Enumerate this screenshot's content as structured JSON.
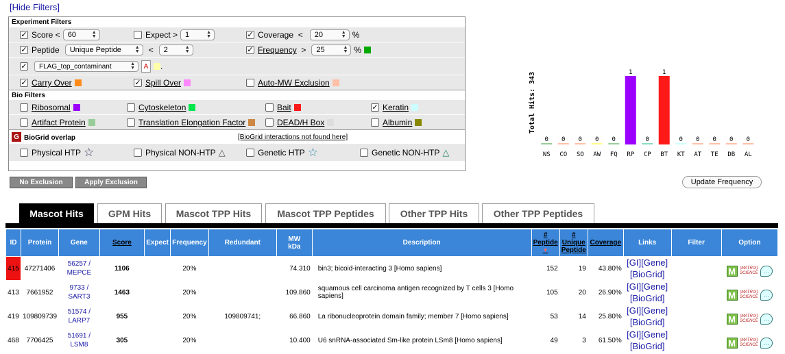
{
  "hide_filters": "[Hide Filters]",
  "experiment": {
    "title": "Experiment Filters",
    "score_label": "Score <",
    "score_value": "60",
    "expect_label": "Expect >",
    "expect_value": "1",
    "coverage_label": "Coverage",
    "coverage_op": "<",
    "coverage_value": "20",
    "coverage_unit": "%",
    "peptide_label": "Peptide",
    "peptide_type": "Unique Peptide",
    "peptide_op": "<",
    "peptide_value": "2",
    "frequency_label": "Frequency",
    "frequency_op": ">",
    "frequency_value": "25",
    "frequency_unit": "%",
    "contaminant_value": "FLAG_top_contaminant",
    "contaminant_dot": ".",
    "carry_over": "Carry Over",
    "spill_over": "Spill Over",
    "auto_mw": "Auto-MW Exclusion"
  },
  "bio": {
    "title": "Bio Filters",
    "ribosomal": "Ribosomal",
    "cytoskeleton": "Cytoskeleton",
    "bait": "Bait",
    "keratin": "Keratin",
    "artifact": "Artifact Protein",
    "translation": "Translation Elongation Factor",
    "dead": "DEAD/H Box",
    "albumin": "Albumin"
  },
  "biogrid": {
    "title": "BioGrid overlap",
    "not_found": "[BioGrid interactions not found here]",
    "physical_htp": "Physical HTP",
    "physical_non_htp": "Physical NON-HTP",
    "genetic_htp": "Genetic HTP",
    "genetic_non_htp": "Genetic NON-HTP"
  },
  "colors": {
    "ribosomal": "#9b00ff",
    "cytoskeleton": "#00e64d",
    "bait": "#ff1a1a",
    "keratin": "#ccffff",
    "artifact": "#99cc99",
    "translation": "#cc8844",
    "dead": "#dddddd",
    "albumin": "#888800",
    "carry_over": "#ff8c1a",
    "spill_over": "#ff88ff",
    "auto_mw": "#ffc0a8",
    "frequency": "#00aa00",
    "contaminant": "#ffffaa",
    "header": "#3b86d8",
    "highlight": "#ee1111"
  },
  "buttons": {
    "no_exclusion": "No Exclusion",
    "apply_exclusion": "Apply Exclusion",
    "update_frequency": "Update Frequency"
  },
  "chart_data": {
    "type": "bar",
    "ylabel": "Total Hits: 343",
    "categories": [
      "NS",
      "CO",
      "SO",
      "AW",
      "FQ",
      "RP",
      "CP",
      "BT",
      "KT",
      "AT",
      "TE",
      "DB",
      "AL"
    ],
    "values": [
      0,
      0,
      0,
      0,
      0,
      1,
      0,
      1,
      0,
      0,
      0,
      0,
      0
    ],
    "colors": [
      "#99cc99",
      "#ffc0a8",
      "#ffc0a8",
      "#ffff88",
      "#99cc99",
      "#9b00ff",
      "#88ddbb",
      "#ff1a1a",
      "#ccffff",
      "#ffc0a8",
      "#ffc0a8",
      "#ffc0a8",
      "#ffc0a8"
    ]
  },
  "tabs": [
    "Mascot Hits",
    "GPM Hits",
    "Mascot TPP Hits",
    "Mascot TPP Peptides",
    "Other TPP Hits",
    "Other TPP Peptides"
  ],
  "table": {
    "headers": {
      "id": "ID",
      "protein": "Protein",
      "gene": "Gene",
      "score": "Score",
      "expect": "Expect",
      "frequency": "Frequency",
      "redundant": "Redundant",
      "mw1": "MW",
      "mw2": "kDa",
      "description": "Description",
      "peptide1": "#",
      "peptide2": "Peptide",
      "unique1": "#",
      "unique2": "Unique",
      "unique3": "Peptide",
      "coverage": "Coverage",
      "links": "Links",
      "filter": "Filter",
      "option": "Option"
    },
    "rows": [
      {
        "id": "415",
        "protein": "47271406",
        "gene1": "56257 /",
        "gene2": "MEPCE",
        "score": "1106",
        "freq": "20%",
        "redundant": "",
        "mw": "74.310",
        "desc": "bin3; bicoid-interacting 3 [Homo sapiens]",
        "pep": "152",
        "uniq": "19",
        "cov": "43.80%"
      },
      {
        "id": "413",
        "protein": "7661952",
        "gene1": "9733 /",
        "gene2": "SART3",
        "score": "1463",
        "freq": "20%",
        "redundant": "",
        "mw": "109.860",
        "desc": "squamous cell carcinoma antigen recognized by T cells 3 [Homo sapiens]",
        "pep": "105",
        "uniq": "20",
        "cov": "26.90%"
      },
      {
        "id": "419",
        "protein": "109809739",
        "gene1": "51574 /",
        "gene2": "LARP7",
        "score": "955",
        "freq": "20%",
        "redundant": "109809741;",
        "mw": "66.860",
        "desc": "La ribonucleoprotein domain family; member 7 [Homo sapiens]",
        "pep": "53",
        "uniq": "14",
        "cov": "25.80%"
      },
      {
        "id": "468",
        "protein": "7706425",
        "gene1": "51691 /",
        "gene2": "LSM8",
        "score": "305",
        "freq": "20%",
        "redundant": "",
        "mw": "10.400",
        "desc": "U6 snRNA-associated Sm-like protein LSm8 [Homo sapiens]",
        "pep": "49",
        "uniq": "3",
        "cov": "61.50%"
      }
    ],
    "link_gi": "[GI]",
    "link_gene": "[Gene]",
    "link_biogrid": "[BioGrid]",
    "m_icon": "M",
    "matrix1": "(MATRIX)",
    "matrix2": "SCIENCE"
  }
}
